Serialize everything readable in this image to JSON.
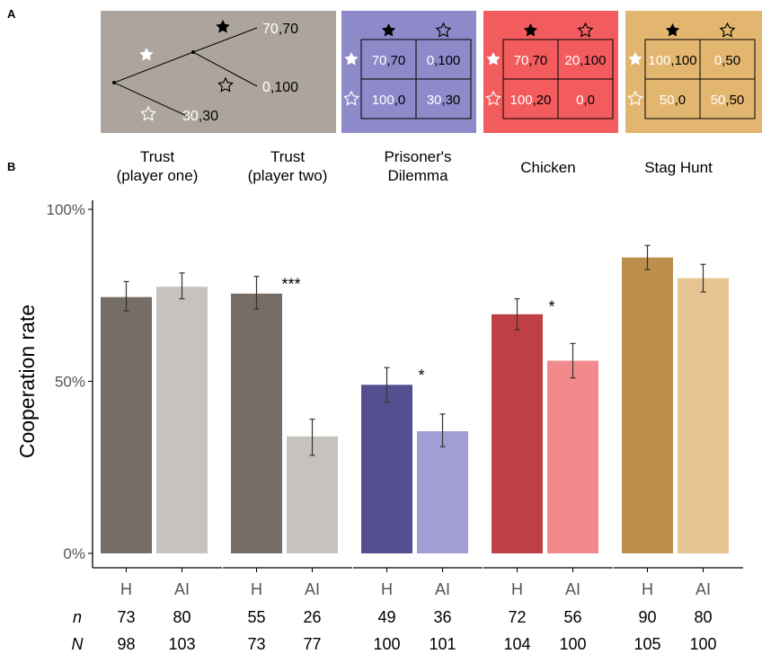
{
  "panel_labels": {
    "a": "A",
    "b": "B"
  },
  "game_panels": {
    "trust_tree": {
      "background": "#ADA59D",
      "outcomes": [
        {
          "first": "70",
          "second": "70"
        },
        {
          "first": "0",
          "second": "100"
        },
        {
          "first": "30",
          "second": "30"
        }
      ]
    },
    "matrices": [
      {
        "name": "Prisoner's Dilemma",
        "background": "#8E89C9",
        "cells": [
          [
            [
              "70",
              "70"
            ],
            [
              "0",
              "100"
            ]
          ],
          [
            [
              "100",
              "0"
            ],
            [
              "30",
              "30"
            ]
          ]
        ]
      },
      {
        "name": "Chicken",
        "background": "#F35C5E",
        "cells": [
          [
            [
              "70",
              "70"
            ],
            [
              "20",
              "100"
            ]
          ],
          [
            [
              "100",
              "20"
            ],
            [
              "0",
              "0"
            ]
          ]
        ]
      },
      {
        "name": "Stag Hunt",
        "background": "#E3B670",
        "cells": [
          [
            [
              "100",
              "100"
            ],
            [
              "0",
              "50"
            ]
          ],
          [
            [
              "50",
              "0"
            ],
            [
              "50",
              "50"
            ]
          ]
        ]
      }
    ]
  },
  "chart_data": {
    "type": "bar",
    "ylabel": "Cooperation rate",
    "ylim": [
      0,
      100
    ],
    "y_ticks": [
      "0%",
      "50%",
      "100%"
    ],
    "groups": [
      {
        "title": "Trust\n(player one)",
        "colors": [
          "#766D66",
          "#C6C2BE"
        ],
        "bars": [
          {
            "label": "H",
            "value": 74.5,
            "ci": [
              70.5,
              79.0
            ]
          },
          {
            "label": "AI",
            "value": 77.5,
            "ci": [
              74.0,
              81.5
            ]
          }
        ],
        "sig": "",
        "n": [
          "73",
          "80"
        ],
        "N": [
          "98",
          "103"
        ]
      },
      {
        "title": "Trust\n(player two)",
        "colors": [
          "#766D66",
          "#C6C2BE"
        ],
        "bars": [
          {
            "label": "H",
            "value": 75.5,
            "ci": [
              71.0,
              80.5
            ]
          },
          {
            "label": "AI",
            "value": 34.0,
            "ci": [
              28.5,
              39.0
            ]
          }
        ],
        "sig": "***",
        "n": [
          "55",
          "26"
        ],
        "N": [
          "73",
          "77"
        ]
      },
      {
        "title": "Prisoner's\nDilemma",
        "colors": [
          "#54508F",
          "#A19ED6"
        ],
        "bars": [
          {
            "label": "H",
            "value": 49.0,
            "ci": [
              44.0,
              54.0
            ]
          },
          {
            "label": "AI",
            "value": 35.5,
            "ci": [
              31.0,
              40.5
            ]
          }
        ],
        "sig": "*",
        "n": [
          "49",
          "36"
        ],
        "N": [
          "100",
          "101"
        ]
      },
      {
        "title": "Chicken",
        "colors": [
          "#BE4045",
          "#F28A8D"
        ],
        "bars": [
          {
            "label": "H",
            "value": 69.5,
            "ci": [
              65.0,
              74.0
            ]
          },
          {
            "label": "AI",
            "value": 56.0,
            "ci": [
              51.0,
              61.0
            ]
          }
        ],
        "sig": "*",
        "n": [
          "72",
          "56"
        ],
        "N": [
          "104",
          "100"
        ]
      },
      {
        "title": "Stag Hunt",
        "colors": [
          "#BD8F4D",
          "#E6C593"
        ],
        "bars": [
          {
            "label": "H",
            "value": 86.0,
            "ci": [
              82.5,
              89.5
            ]
          },
          {
            "label": "AI",
            "value": 80.0,
            "ci": [
              76.0,
              84.0
            ]
          }
        ],
        "sig": "",
        "n": [
          "90",
          "80"
        ],
        "N": [
          "105",
          "100"
        ]
      }
    ],
    "count_row_labels": {
      "n": "n",
      "N": "N"
    }
  }
}
